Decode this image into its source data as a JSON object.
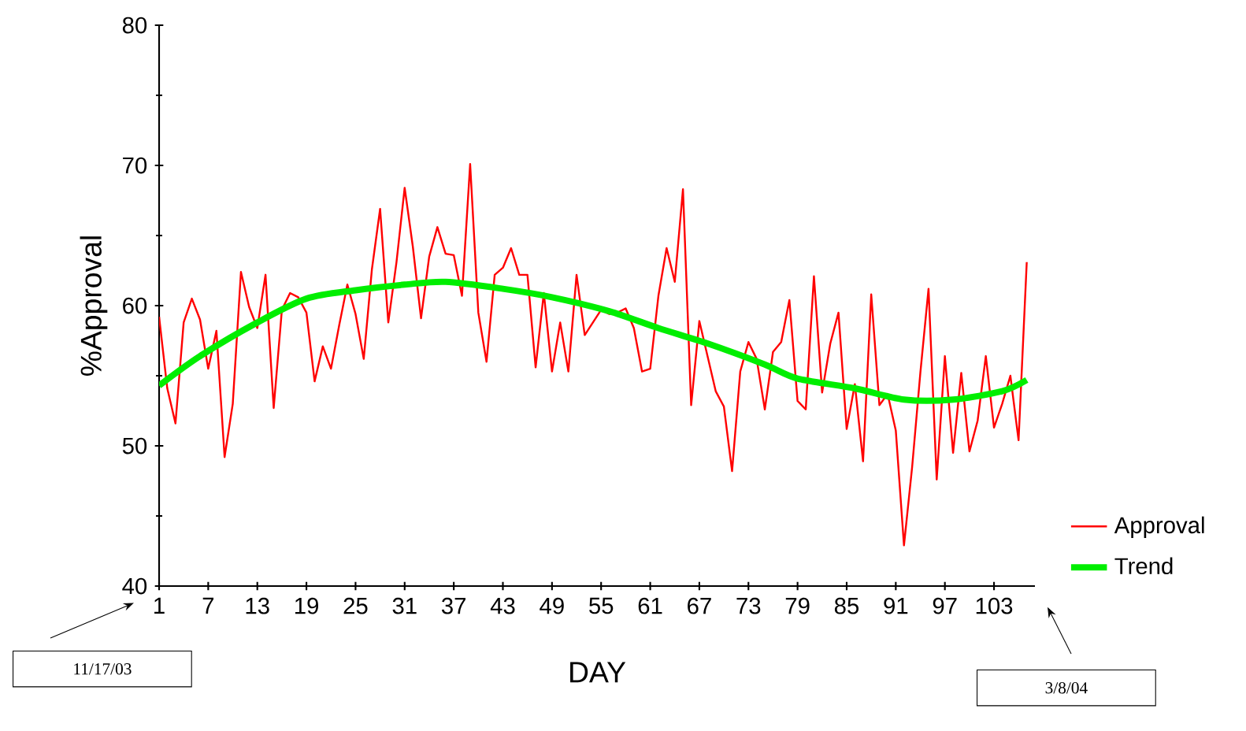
{
  "chart_data": {
    "type": "line",
    "xlabel": "DAY",
    "ylabel": "%Approval",
    "x": [
      1,
      2,
      3,
      4,
      5,
      6,
      7,
      8,
      9,
      10,
      11,
      12,
      13,
      14,
      15,
      16,
      17,
      18,
      19,
      20,
      21,
      22,
      23,
      24,
      25,
      26,
      27,
      28,
      29,
      30,
      31,
      32,
      33,
      34,
      35,
      36,
      37,
      38,
      39,
      40,
      41,
      42,
      43,
      44,
      45,
      46,
      47,
      48,
      49,
      50,
      51,
      52,
      53,
      54,
      55,
      56,
      57,
      58,
      59,
      60,
      61,
      62,
      63,
      64,
      65,
      66,
      67,
      68,
      69,
      70,
      71,
      72,
      73,
      74,
      75,
      76,
      77,
      78,
      79,
      80,
      81,
      82,
      83,
      84,
      85,
      86,
      87,
      88,
      89,
      90,
      91,
      92,
      93,
      94,
      95,
      96,
      97,
      98,
      99,
      100,
      101,
      102,
      103,
      104,
      105,
      106,
      107
    ],
    "series": [
      {
        "name": "Approval",
        "color": "#ff0000",
        "values": [
          59.2,
          54.1,
          51.6,
          58.8,
          60.5,
          59.0,
          55.5,
          58.2,
          49.2,
          53.0,
          62.4,
          59.9,
          58.4,
          62.2,
          52.7,
          59.7,
          60.9,
          60.6,
          59.5,
          54.6,
          57.1,
          55.5,
          58.6,
          61.5,
          59.4,
          56.2,
          62.6,
          66.9,
          58.8,
          63.1,
          68.4,
          64.2,
          59.1,
          63.5,
          65.6,
          63.7,
          63.6,
          60.7,
          70.1,
          59.5,
          56.0,
          62.2,
          62.7,
          64.1,
          62.2,
          62.2,
          55.6,
          60.9,
          55.3,
          58.8,
          55.3,
          62.2,
          57.9,
          58.8,
          59.7,
          59.4,
          59.5,
          59.8,
          58.4,
          55.3,
          55.5,
          60.7,
          64.1,
          61.7,
          68.3,
          52.9,
          58.9,
          56.4,
          53.9,
          52.8,
          48.2,
          55.3,
          57.4,
          56.2,
          52.6,
          56.7,
          57.4,
          60.4,
          53.2,
          52.6,
          62.1,
          53.8,
          57.3,
          59.5,
          51.2,
          54.4,
          48.9,
          60.8,
          52.9,
          53.7,
          51.1,
          42.9,
          48.5,
          55.2,
          61.2,
          47.6,
          56.4,
          49.5,
          55.2,
          49.6,
          51.8,
          56.4,
          51.3,
          53.0,
          55.0,
          50.4,
          63.1
        ]
      },
      {
        "name": "Trend",
        "color": "#00ee00",
        "x": [
          1,
          6,
          13,
          19,
          25,
          31,
          36,
          43,
          49,
          56,
          62,
          68,
          75,
          79,
          86,
          92,
          98,
          104,
          107
        ],
        "values": [
          54.3,
          56.4,
          58.8,
          60.5,
          61.1,
          61.5,
          61.7,
          61.2,
          60.6,
          59.6,
          58.4,
          57.3,
          55.8,
          54.8,
          54.1,
          53.3,
          53.3,
          53.9,
          54.7
        ]
      }
    ],
    "xlim": [
      1,
      108
    ],
    "xticks": [
      1,
      7,
      13,
      19,
      25,
      31,
      37,
      43,
      49,
      55,
      61,
      67,
      73,
      79,
      85,
      91,
      97,
      103
    ],
    "ylim": [
      40,
      80
    ],
    "yticks": [
      40,
      50,
      60,
      70,
      80
    ],
    "grid": false,
    "legend": "right",
    "marker": "none",
    "line_style": "solid",
    "annotations": [
      "11/17/03",
      "3/8/04"
    ]
  }
}
